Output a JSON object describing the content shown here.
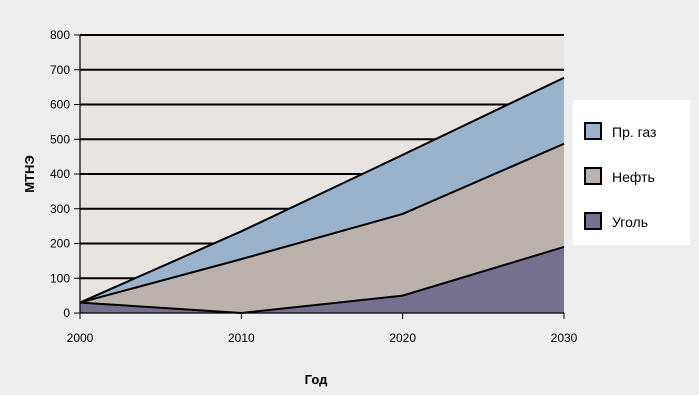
{
  "chart_data": {
    "type": "area",
    "stacked": true,
    "x": [
      2000,
      2010,
      2020,
      2030
    ],
    "xlabel": "Год",
    "ylabel": "МТНЭ",
    "ylim": [
      0,
      800
    ],
    "yticks": [
      0,
      100,
      200,
      300,
      400,
      500,
      600,
      700,
      800
    ],
    "xticks": [
      2000,
      2010,
      2020,
      2030
    ],
    "grid": true,
    "legend_position": "right",
    "colors": {
      "plot_bg": "#e8e4e2",
      "page_bg": "#eeeeee",
      "line": "#000000"
    },
    "series": [
      {
        "name": "Уголь",
        "color": "#76708f",
        "points": [
          [
            2000,
            30
          ],
          [
            2010,
            0
          ],
          [
            2020,
            50
          ],
          [
            2030,
            190
          ]
        ]
      },
      {
        "name": "Нефть",
        "color": "#bbb1ad",
        "points": [
          [
            2000,
            30
          ],
          [
            2010,
            155
          ],
          [
            2020,
            285
          ],
          [
            2030,
            487
          ]
        ]
      },
      {
        "name": "Пр. газ",
        "color": "#9ab3cc",
        "points": [
          [
            2000,
            30
          ],
          [
            2010,
            235
          ],
          [
            2020,
            455
          ],
          [
            2030,
            677
          ]
        ]
      }
    ]
  }
}
